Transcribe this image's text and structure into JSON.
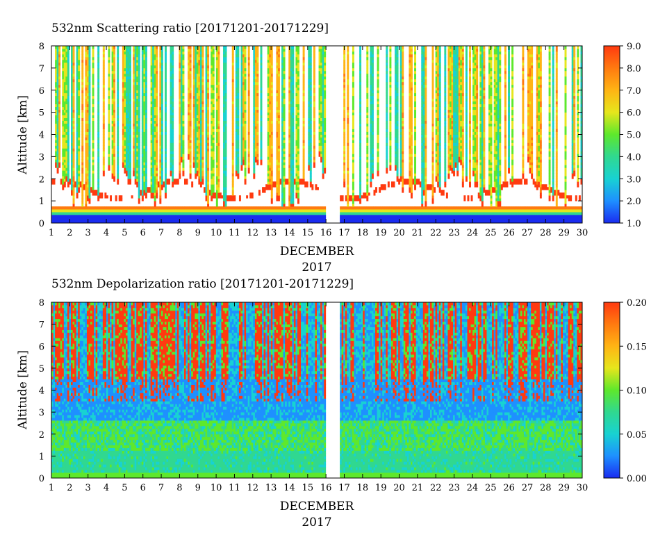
{
  "colormap": [
    "#1a2cf0",
    "#1e90ff",
    "#18d2d2",
    "#30d890",
    "#5ee82c",
    "#e6e61c",
    "#ffb414",
    "#ff7a10",
    "#ff3a10"
  ],
  "gap_color": "#ffffff",
  "chart_data": [
    {
      "type": "heatmap",
      "title": "532nm Scattering ratio [20171201-20171229]",
      "xlabel": "DECEMBER",
      "xlabel2": "2017",
      "ylabel": "Altitude [km]",
      "xlim": [
        1,
        30
      ],
      "ylim": [
        0,
        8
      ],
      "xticks": [
        "1",
        "2",
        "3",
        "4",
        "5",
        "6",
        "7",
        "8",
        "9",
        "10",
        "11",
        "12",
        "13",
        "14",
        "15",
        "16",
        "17",
        "18",
        "19",
        "20",
        "21",
        "22",
        "23",
        "24",
        "25",
        "26",
        "27",
        "28",
        "29",
        "30"
      ],
      "yticks": [
        "0",
        "1",
        "2",
        "3",
        "4",
        "5",
        "6",
        "7",
        "8"
      ],
      "colorbar": {
        "min": 1.0,
        "max": 9.0,
        "ticks": [
          "1.0",
          "2.0",
          "3.0",
          "4.0",
          "5.0",
          "6.0",
          "7.0",
          "8.0",
          "9.0"
        ]
      },
      "data_gap_days": [
        16.0,
        16.75
      ],
      "grid": false
    },
    {
      "type": "heatmap",
      "title": "532nm Depolarization ratio [20171201-20171229]",
      "xlabel": "DECEMBER",
      "xlabel2": "2017",
      "ylabel": "Altitude [km]",
      "xlim": [
        1,
        30
      ],
      "ylim": [
        0,
        8
      ],
      "xticks": [
        "1",
        "2",
        "3",
        "4",
        "5",
        "6",
        "7",
        "8",
        "9",
        "10",
        "11",
        "12",
        "13",
        "14",
        "15",
        "16",
        "17",
        "18",
        "19",
        "20",
        "21",
        "22",
        "23",
        "24",
        "25",
        "26",
        "27",
        "28",
        "29",
        "30"
      ],
      "yticks": [
        "0",
        "1",
        "2",
        "3",
        "4",
        "5",
        "6",
        "7",
        "8"
      ],
      "colorbar": {
        "min": 0.0,
        "max": 0.2,
        "ticks": [
          "0.00",
          "0.05",
          "0.10",
          "0.15",
          "0.20"
        ]
      },
      "data_gap_days": [
        16.0,
        16.75
      ],
      "grid": false
    }
  ]
}
